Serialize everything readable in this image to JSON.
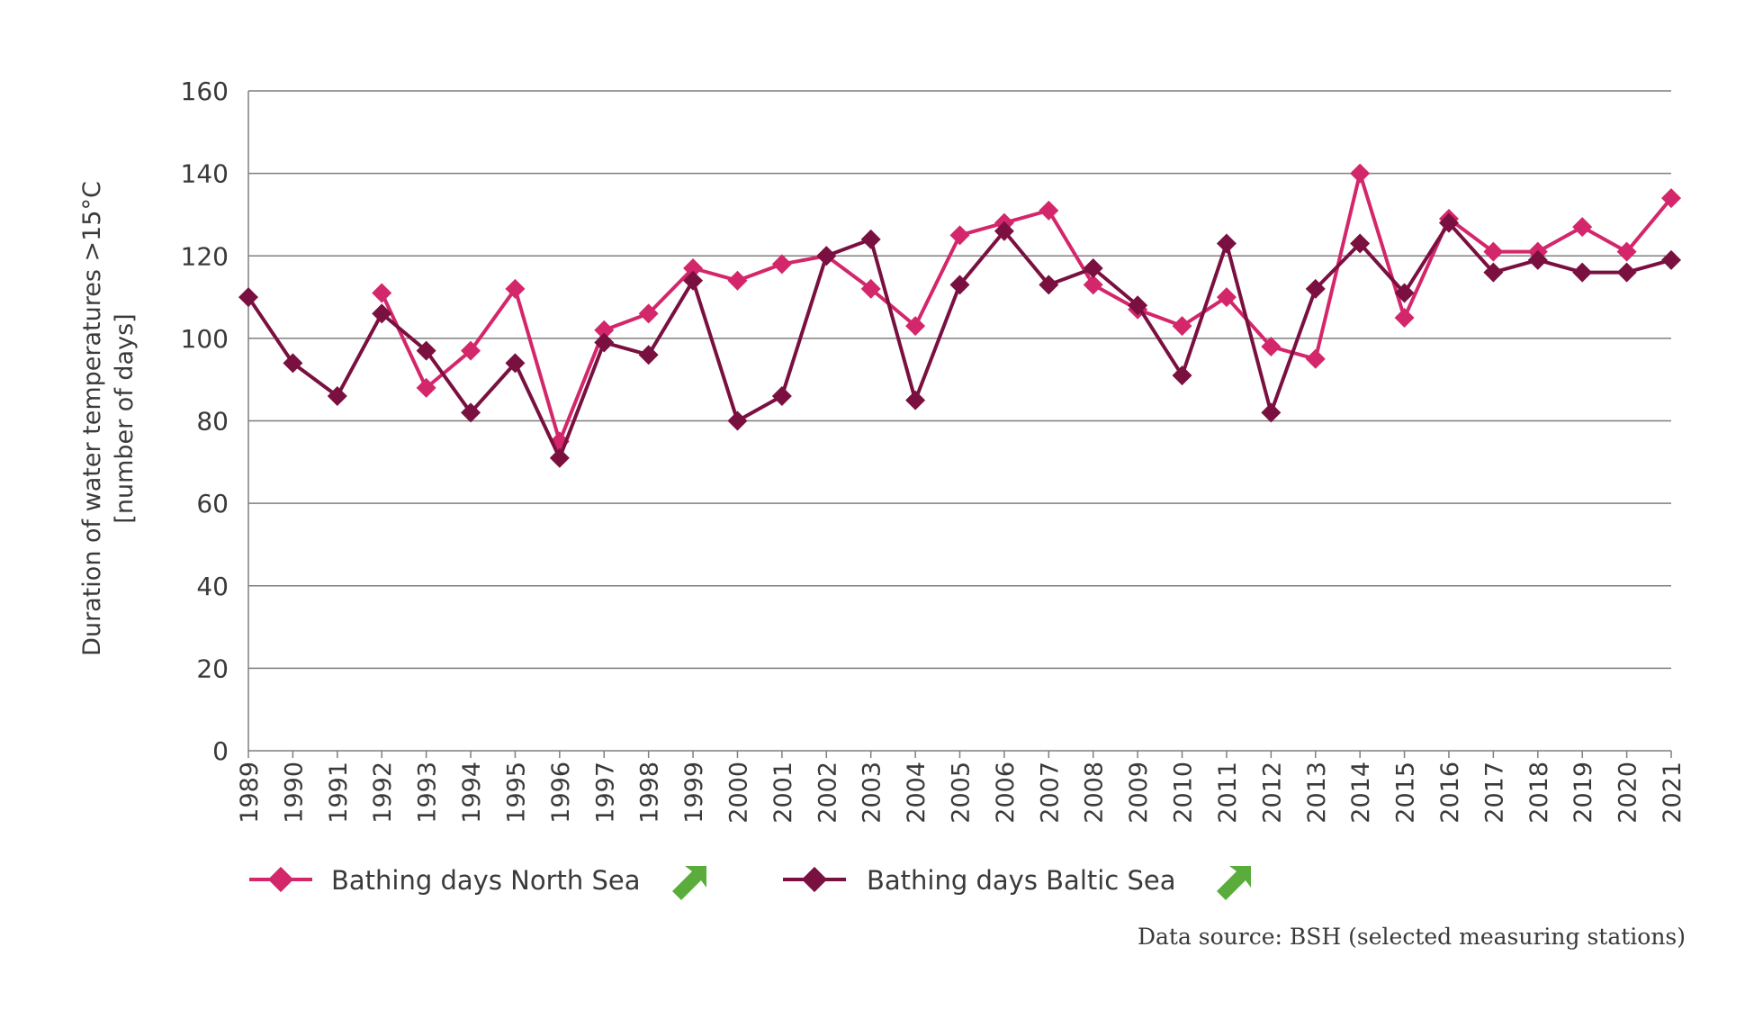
{
  "chart_data": {
    "type": "line",
    "title": "",
    "ylabel_line1": "Duration of water temperatures >15°C",
    "ylabel_line2": "[number of days]",
    "xlabel": "",
    "ylim": [
      0,
      160
    ],
    "yticks": [
      0,
      20,
      40,
      60,
      80,
      100,
      120,
      140,
      160
    ],
    "grid": true,
    "legend_position": "bottom",
    "categories": [
      "1989",
      "1990",
      "1991",
      "1992",
      "1993",
      "1994",
      "1995",
      "1996",
      "1997",
      "1998",
      "1999",
      "2000",
      "2001",
      "2002",
      "2003",
      "2004",
      "2005",
      "2006",
      "2007",
      "2008",
      "2009",
      "2010",
      "2011",
      "2012",
      "2013",
      "2014",
      "2015",
      "2016",
      "2017",
      "2018",
      "2019",
      "2020",
      "2021"
    ],
    "series": [
      {
        "name": "Bathing days North Sea",
        "color": "#d4266b",
        "values": [
          null,
          null,
          null,
          111,
          88,
          97,
          112,
          75,
          102,
          106,
          117,
          114,
          118,
          120,
          112,
          103,
          125,
          128,
          131,
          113,
          107,
          103,
          110,
          98,
          95,
          140,
          105,
          129,
          121,
          121,
          127,
          121,
          134
        ],
        "trend_icon": "trend-up-arrow-icon",
        "trend_color": "#5aac3c"
      },
      {
        "name": "Bathing days Baltic Sea",
        "color": "#7a1040",
        "values": [
          110,
          94,
          86,
          106,
          97,
          82,
          94,
          71,
          99,
          96,
          114,
          80,
          86,
          120,
          124,
          85,
          113,
          126,
          113,
          117,
          108,
          91,
          123,
          82,
          112,
          123,
          111,
          128,
          116,
          119,
          116,
          116,
          119
        ],
        "trend_icon": "trend-up-arrow-icon",
        "trend_color": "#5aac3c"
      }
    ]
  },
  "source": "Data source: BSH (selected measuring stations)"
}
